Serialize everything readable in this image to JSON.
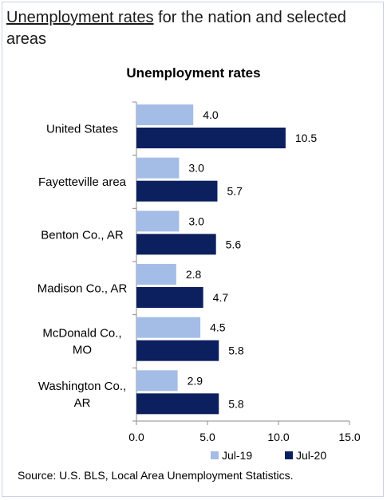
{
  "page": {
    "heading_link": "Unemployment rates",
    "heading_rest": " for the nation and selected areas",
    "source": "Source: U.S. BLS, Local Area Unemployment Statistics."
  },
  "chart_data": {
    "type": "bar",
    "orientation": "horizontal",
    "title": "Unemployment rates",
    "categories": [
      [
        "United States"
      ],
      [
        "Fayetteville area"
      ],
      [
        "Benton Co., AR"
      ],
      [
        "Madison Co., AR"
      ],
      [
        "McDonald Co.,",
        "MO"
      ],
      [
        "Washington Co.,",
        "AR"
      ]
    ],
    "series": [
      {
        "name": "Jul-19",
        "color": "#a4bde6",
        "values": [
          4.0,
          3.0,
          3.0,
          2.8,
          4.5,
          2.9
        ]
      },
      {
        "name": "Jul-20",
        "color": "#0c1f5e",
        "values": [
          10.5,
          5.7,
          5.6,
          4.7,
          5.8,
          5.8
        ]
      }
    ],
    "xlim": [
      0,
      15
    ],
    "xticks": [
      "0.0",
      "5.0",
      "10.0",
      "15.0"
    ],
    "grid": false,
    "legend": "bottom-right"
  }
}
